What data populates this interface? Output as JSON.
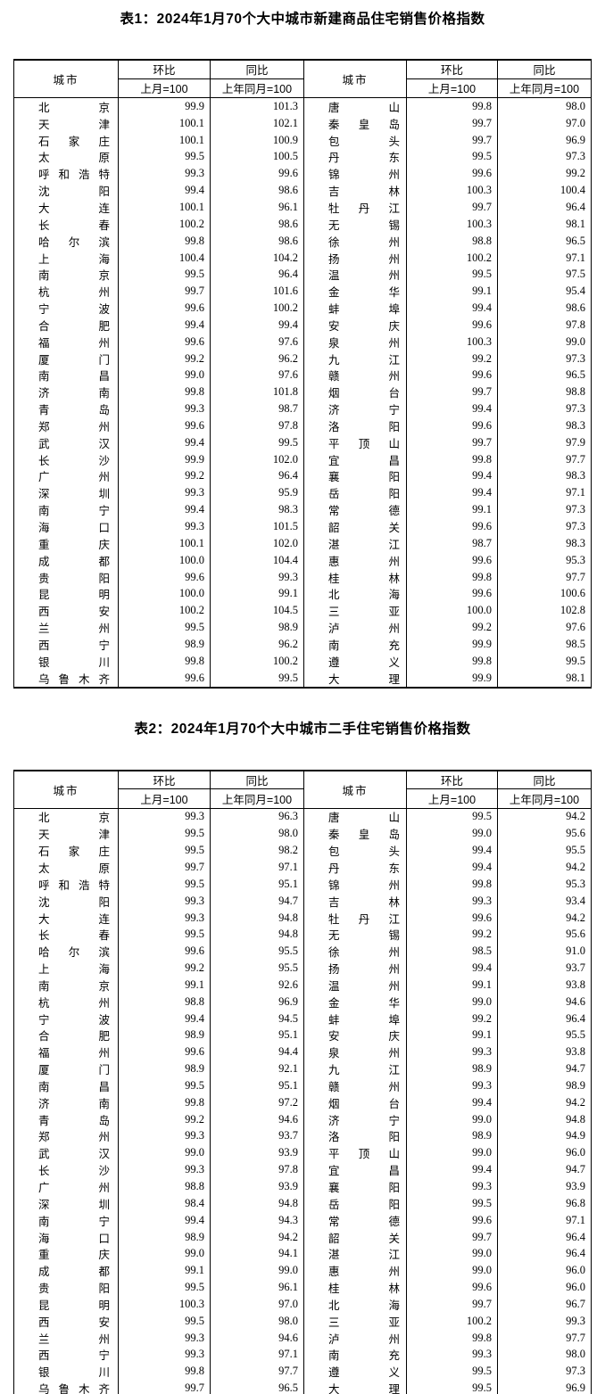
{
  "table1": {
    "title": "表1：2024年1月70个大中城市新建商品住宅销售价格指数",
    "header": {
      "city": "城市",
      "mom": "环比",
      "yoy": "同比",
      "mom_base": "上月=100",
      "yoy_base": "上年同月=100"
    },
    "left_rows": [
      {
        "city": "北京",
        "mom": "99.9",
        "yoy": "101.3"
      },
      {
        "city": "天津",
        "mom": "100.1",
        "yoy": "102.1"
      },
      {
        "city": "石家庄",
        "mom": "100.1",
        "yoy": "100.9"
      },
      {
        "city": "太原",
        "mom": "99.5",
        "yoy": "100.5"
      },
      {
        "city": "呼和浩特",
        "mom": "99.3",
        "yoy": "99.6"
      },
      {
        "city": "沈阳",
        "mom": "99.4",
        "yoy": "98.6"
      },
      {
        "city": "大连",
        "mom": "100.1",
        "yoy": "96.1"
      },
      {
        "city": "长春",
        "mom": "100.2",
        "yoy": "98.6"
      },
      {
        "city": "哈尔滨",
        "mom": "99.8",
        "yoy": "98.6"
      },
      {
        "city": "上海",
        "mom": "100.4",
        "yoy": "104.2"
      },
      {
        "city": "南京",
        "mom": "99.5",
        "yoy": "96.4"
      },
      {
        "city": "杭州",
        "mom": "99.7",
        "yoy": "101.6"
      },
      {
        "city": "宁波",
        "mom": "99.6",
        "yoy": "100.2"
      },
      {
        "city": "合肥",
        "mom": "99.4",
        "yoy": "99.4"
      },
      {
        "city": "福州",
        "mom": "99.6",
        "yoy": "97.6"
      },
      {
        "city": "厦门",
        "mom": "99.2",
        "yoy": "96.2"
      },
      {
        "city": "南昌",
        "mom": "99.0",
        "yoy": "97.6"
      },
      {
        "city": "济南",
        "mom": "99.8",
        "yoy": "101.8"
      },
      {
        "city": "青岛",
        "mom": "99.3",
        "yoy": "98.7"
      },
      {
        "city": "郑州",
        "mom": "99.6",
        "yoy": "97.8"
      },
      {
        "city": "武汉",
        "mom": "99.4",
        "yoy": "99.5"
      },
      {
        "city": "长沙",
        "mom": "99.9",
        "yoy": "102.0"
      },
      {
        "city": "广州",
        "mom": "99.2",
        "yoy": "96.4"
      },
      {
        "city": "深圳",
        "mom": "99.3",
        "yoy": "95.9"
      },
      {
        "city": "南宁",
        "mom": "99.4",
        "yoy": "98.3"
      },
      {
        "city": "海口",
        "mom": "99.3",
        "yoy": "101.5"
      },
      {
        "city": "重庆",
        "mom": "100.1",
        "yoy": "102.0"
      },
      {
        "city": "成都",
        "mom": "100.0",
        "yoy": "104.4"
      },
      {
        "city": "贵阳",
        "mom": "99.6",
        "yoy": "99.3"
      },
      {
        "city": "昆明",
        "mom": "100.0",
        "yoy": "99.1"
      },
      {
        "city": "西安",
        "mom": "100.2",
        "yoy": "104.5"
      },
      {
        "city": "兰州",
        "mom": "99.5",
        "yoy": "98.9"
      },
      {
        "city": "西宁",
        "mom": "98.9",
        "yoy": "96.2"
      },
      {
        "city": "银川",
        "mom": "99.8",
        "yoy": "100.2"
      },
      {
        "city": "乌鲁木齐",
        "mom": "99.6",
        "yoy": "99.5"
      }
    ],
    "right_rows": [
      {
        "city": "唐山",
        "mom": "99.8",
        "yoy": "98.0"
      },
      {
        "city": "秦皇岛",
        "mom": "99.7",
        "yoy": "97.0"
      },
      {
        "city": "包头",
        "mom": "99.7",
        "yoy": "96.9"
      },
      {
        "city": "丹东",
        "mom": "99.5",
        "yoy": "97.3"
      },
      {
        "city": "锦州",
        "mom": "99.6",
        "yoy": "99.2"
      },
      {
        "city": "吉林",
        "mom": "100.3",
        "yoy": "100.4"
      },
      {
        "city": "牡丹江",
        "mom": "99.7",
        "yoy": "96.4"
      },
      {
        "city": "无锡",
        "mom": "100.3",
        "yoy": "98.1"
      },
      {
        "city": "徐州",
        "mom": "98.8",
        "yoy": "96.5"
      },
      {
        "city": "扬州",
        "mom": "100.2",
        "yoy": "97.1"
      },
      {
        "city": "温州",
        "mom": "99.5",
        "yoy": "97.5"
      },
      {
        "city": "金华",
        "mom": "99.1",
        "yoy": "95.4"
      },
      {
        "city": "蚌埠",
        "mom": "99.4",
        "yoy": "98.6"
      },
      {
        "city": "安庆",
        "mom": "99.6",
        "yoy": "97.8"
      },
      {
        "city": "泉州",
        "mom": "100.3",
        "yoy": "99.0"
      },
      {
        "city": "九江",
        "mom": "99.2",
        "yoy": "97.3"
      },
      {
        "city": "赣州",
        "mom": "99.6",
        "yoy": "96.5"
      },
      {
        "city": "烟台",
        "mom": "99.7",
        "yoy": "98.8"
      },
      {
        "city": "济宁",
        "mom": "99.4",
        "yoy": "97.3"
      },
      {
        "city": "洛阳",
        "mom": "99.6",
        "yoy": "98.3"
      },
      {
        "city": "平顶山",
        "mom": "99.7",
        "yoy": "97.9"
      },
      {
        "city": "宜昌",
        "mom": "99.8",
        "yoy": "97.7"
      },
      {
        "city": "襄阳",
        "mom": "99.4",
        "yoy": "98.3"
      },
      {
        "city": "岳阳",
        "mom": "99.4",
        "yoy": "97.1"
      },
      {
        "city": "常德",
        "mom": "99.1",
        "yoy": "97.3"
      },
      {
        "city": "韶关",
        "mom": "99.6",
        "yoy": "97.3"
      },
      {
        "city": "湛江",
        "mom": "98.7",
        "yoy": "98.3"
      },
      {
        "city": "惠州",
        "mom": "99.6",
        "yoy": "95.3"
      },
      {
        "city": "桂林",
        "mom": "99.8",
        "yoy": "97.7"
      },
      {
        "city": "北海",
        "mom": "99.6",
        "yoy": "100.6"
      },
      {
        "city": "三亚",
        "mom": "100.0",
        "yoy": "102.8"
      },
      {
        "city": "泸州",
        "mom": "99.2",
        "yoy": "97.6"
      },
      {
        "city": "南充",
        "mom": "99.9",
        "yoy": "98.5"
      },
      {
        "city": "遵义",
        "mom": "99.8",
        "yoy": "99.5"
      },
      {
        "city": "大理",
        "mom": "99.9",
        "yoy": "98.1"
      }
    ]
  },
  "table2": {
    "title": "表2：2024年1月70个大中城市二手住宅销售价格指数",
    "header": {
      "city": "城市",
      "mom": "环比",
      "yoy": "同比",
      "mom_base": "上月=100",
      "yoy_base": "上年同月=100"
    },
    "left_rows": [
      {
        "city": "北京",
        "mom": "99.3",
        "yoy": "96.3"
      },
      {
        "city": "天津",
        "mom": "99.5",
        "yoy": "98.0"
      },
      {
        "city": "石家庄",
        "mom": "99.5",
        "yoy": "98.2"
      },
      {
        "city": "太原",
        "mom": "99.7",
        "yoy": "97.1"
      },
      {
        "city": "呼和浩特",
        "mom": "99.5",
        "yoy": "95.1"
      },
      {
        "city": "沈阳",
        "mom": "99.3",
        "yoy": "94.7"
      },
      {
        "city": "大连",
        "mom": "99.3",
        "yoy": "94.8"
      },
      {
        "city": "长春",
        "mom": "99.5",
        "yoy": "94.8"
      },
      {
        "city": "哈尔滨",
        "mom": "99.6",
        "yoy": "95.5"
      },
      {
        "city": "上海",
        "mom": "99.2",
        "yoy": "95.5"
      },
      {
        "city": "南京",
        "mom": "99.1",
        "yoy": "92.6"
      },
      {
        "city": "杭州",
        "mom": "98.8",
        "yoy": "96.9"
      },
      {
        "city": "宁波",
        "mom": "99.4",
        "yoy": "94.5"
      },
      {
        "city": "合肥",
        "mom": "98.9",
        "yoy": "95.1"
      },
      {
        "city": "福州",
        "mom": "99.6",
        "yoy": "94.4"
      },
      {
        "city": "厦门",
        "mom": "98.9",
        "yoy": "92.1"
      },
      {
        "city": "南昌",
        "mom": "99.5",
        "yoy": "95.1"
      },
      {
        "city": "济南",
        "mom": "99.8",
        "yoy": "97.2"
      },
      {
        "city": "青岛",
        "mom": "99.2",
        "yoy": "94.6"
      },
      {
        "city": "郑州",
        "mom": "99.3",
        "yoy": "93.7"
      },
      {
        "city": "武汉",
        "mom": "99.0",
        "yoy": "93.9"
      },
      {
        "city": "长沙",
        "mom": "99.3",
        "yoy": "97.8"
      },
      {
        "city": "广州",
        "mom": "98.8",
        "yoy": "93.9"
      },
      {
        "city": "深圳",
        "mom": "98.4",
        "yoy": "94.8"
      },
      {
        "city": "南宁",
        "mom": "99.4",
        "yoy": "94.3"
      },
      {
        "city": "海口",
        "mom": "98.9",
        "yoy": "94.2"
      },
      {
        "city": "重庆",
        "mom": "99.0",
        "yoy": "94.1"
      },
      {
        "city": "成都",
        "mom": "99.1",
        "yoy": "99.0"
      },
      {
        "city": "贵阳",
        "mom": "99.5",
        "yoy": "96.1"
      },
      {
        "city": "昆明",
        "mom": "100.3",
        "yoy": "97.0"
      },
      {
        "city": "西安",
        "mom": "99.5",
        "yoy": "98.0"
      },
      {
        "city": "兰州",
        "mom": "99.3",
        "yoy": "94.6"
      },
      {
        "city": "西宁",
        "mom": "99.3",
        "yoy": "97.1"
      },
      {
        "city": "银川",
        "mom": "99.8",
        "yoy": "97.7"
      },
      {
        "city": "乌鲁木齐",
        "mom": "99.7",
        "yoy": "96.5"
      }
    ],
    "right_rows": [
      {
        "city": "唐山",
        "mom": "99.5",
        "yoy": "94.2"
      },
      {
        "city": "秦皇岛",
        "mom": "99.0",
        "yoy": "95.6"
      },
      {
        "city": "包头",
        "mom": "99.4",
        "yoy": "95.5"
      },
      {
        "city": "丹东",
        "mom": "99.4",
        "yoy": "94.2"
      },
      {
        "city": "锦州",
        "mom": "99.8",
        "yoy": "95.3"
      },
      {
        "city": "吉林",
        "mom": "99.3",
        "yoy": "93.4"
      },
      {
        "city": "牡丹江",
        "mom": "99.6",
        "yoy": "94.2"
      },
      {
        "city": "无锡",
        "mom": "99.2",
        "yoy": "95.6"
      },
      {
        "city": "徐州",
        "mom": "98.5",
        "yoy": "91.0"
      },
      {
        "city": "扬州",
        "mom": "99.4",
        "yoy": "93.7"
      },
      {
        "city": "温州",
        "mom": "99.1",
        "yoy": "93.8"
      },
      {
        "city": "金华",
        "mom": "99.0",
        "yoy": "94.6"
      },
      {
        "city": "蚌埠",
        "mom": "99.2",
        "yoy": "96.4"
      },
      {
        "city": "安庆",
        "mom": "99.1",
        "yoy": "95.5"
      },
      {
        "city": "泉州",
        "mom": "99.3",
        "yoy": "93.8"
      },
      {
        "city": "九江",
        "mom": "98.9",
        "yoy": "94.7"
      },
      {
        "city": "赣州",
        "mom": "99.3",
        "yoy": "98.9"
      },
      {
        "city": "烟台",
        "mom": "99.4",
        "yoy": "94.2"
      },
      {
        "city": "济宁",
        "mom": "99.0",
        "yoy": "94.8"
      },
      {
        "city": "洛阳",
        "mom": "98.9",
        "yoy": "94.9"
      },
      {
        "city": "平顶山",
        "mom": "99.0",
        "yoy": "96.0"
      },
      {
        "city": "宜昌",
        "mom": "99.4",
        "yoy": "94.7"
      },
      {
        "city": "襄阳",
        "mom": "99.3",
        "yoy": "93.9"
      },
      {
        "city": "岳阳",
        "mom": "99.5",
        "yoy": "96.8"
      },
      {
        "city": "常德",
        "mom": "99.6",
        "yoy": "97.1"
      },
      {
        "city": "韶关",
        "mom": "99.7",
        "yoy": "96.4"
      },
      {
        "city": "湛江",
        "mom": "99.0",
        "yoy": "96.4"
      },
      {
        "city": "惠州",
        "mom": "99.0",
        "yoy": "96.0"
      },
      {
        "city": "桂林",
        "mom": "99.6",
        "yoy": "96.0"
      },
      {
        "city": "北海",
        "mom": "99.7",
        "yoy": "96.7"
      },
      {
        "city": "三亚",
        "mom": "100.2",
        "yoy": "99.3"
      },
      {
        "city": "泸州",
        "mom": "99.8",
        "yoy": "97.7"
      },
      {
        "city": "南充",
        "mom": "99.3",
        "yoy": "98.0"
      },
      {
        "city": "遵义",
        "mom": "99.5",
        "yoy": "97.3"
      },
      {
        "city": "大理",
        "mom": "99.5",
        "yoy": "96.9"
      }
    ]
  }
}
